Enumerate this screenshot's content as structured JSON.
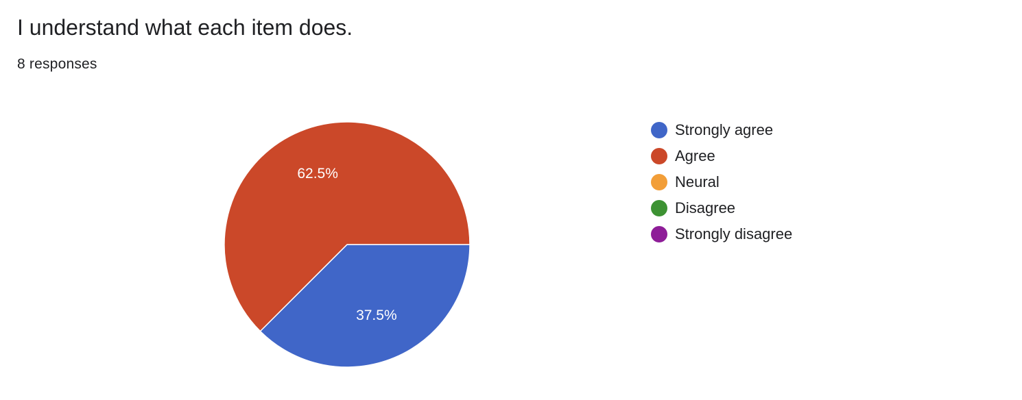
{
  "header": {
    "question": "I understand what each item does.",
    "responses": "8 responses"
  },
  "chart_data": {
    "type": "pie",
    "categories": [
      "Strongly agree",
      "Agree",
      "Neural",
      "Disagree",
      "Strongly disagree"
    ],
    "values": [
      37.5,
      62.5,
      0,
      0,
      0
    ],
    "value_labels": [
      "37.5%",
      "62.5%",
      "",
      "",
      ""
    ],
    "colors": [
      "#4066c8",
      "#cb4829",
      "#f29e38",
      "#3d9233",
      "#8e1d98"
    ],
    "legend_position": "right",
    "start_angle": "3 o'clock, clockwise"
  }
}
